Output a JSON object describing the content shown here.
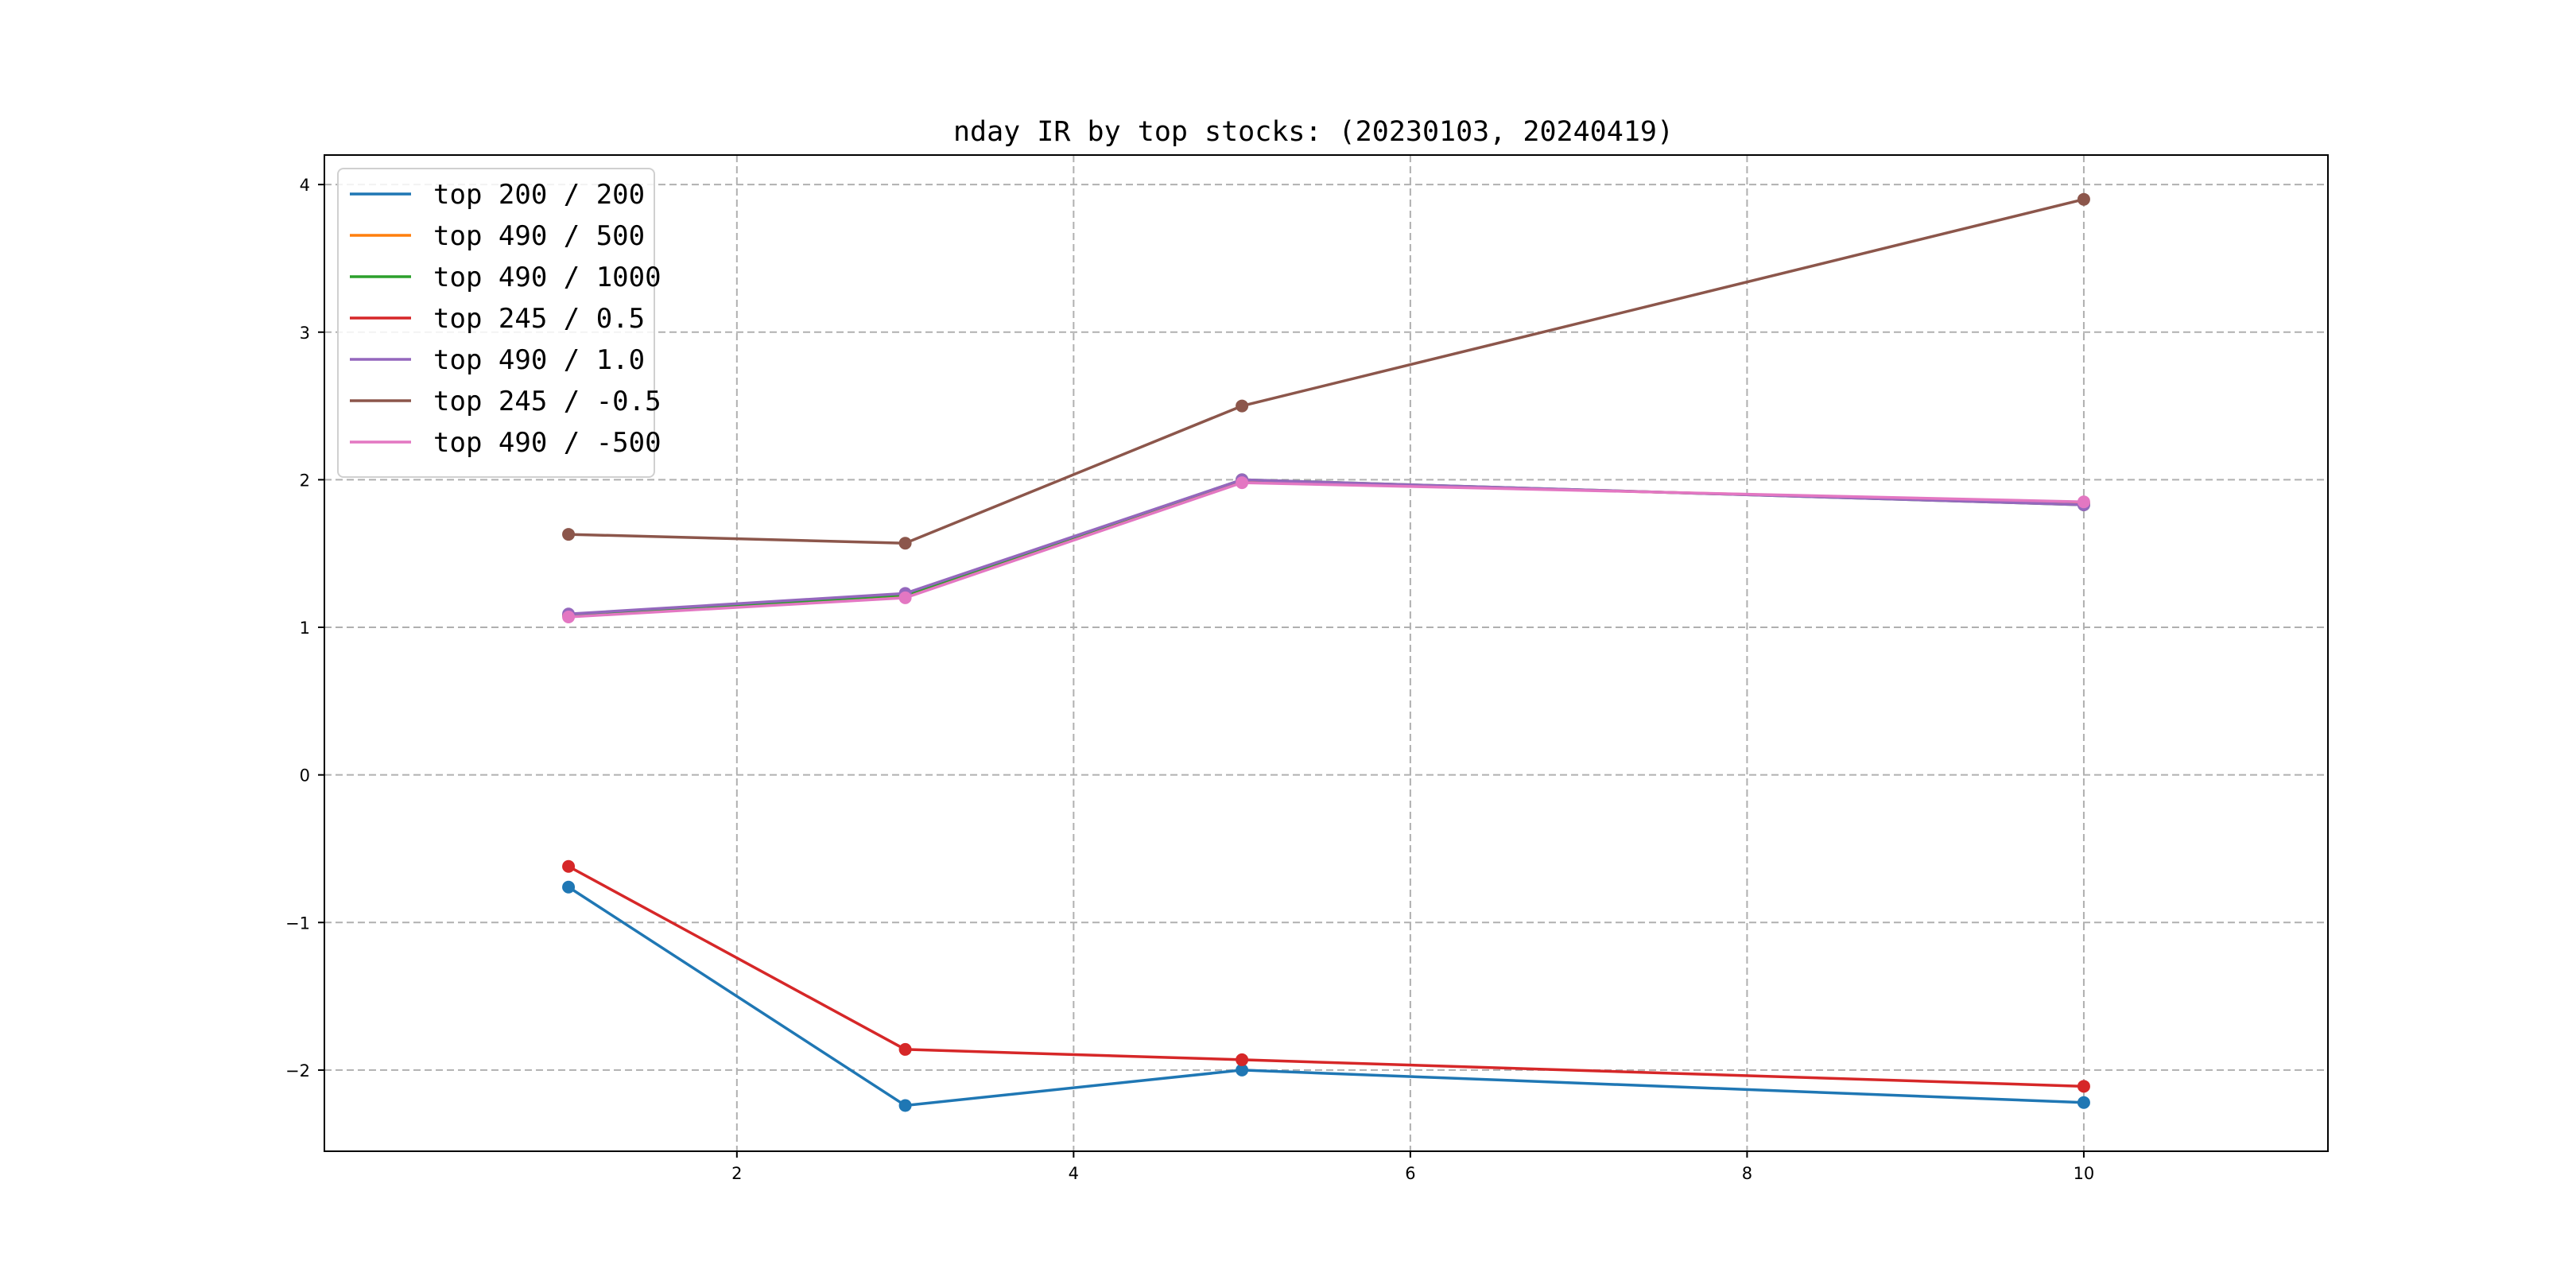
{
  "chart_data": {
    "type": "line",
    "title": "nday IR by top stocks: (20230103, 20240419)",
    "xlabel": "",
    "ylabel": "",
    "x": [
      1,
      3,
      5,
      10
    ],
    "xlim": [
      -0.45,
      11.45
    ],
    "ylim": [
      -2.55,
      4.2
    ],
    "xticks": [
      2,
      4,
      6,
      8,
      10
    ],
    "yticks": [
      -2,
      -1,
      0,
      1,
      2,
      3,
      4
    ],
    "grid": true,
    "legend_position": "top-left",
    "series": [
      {
        "name": "top 200 / 200",
        "color": "#1f77b4",
        "values": [
          -0.76,
          -2.24,
          -2.0,
          -2.22
        ]
      },
      {
        "name": "top 490 / 500",
        "color": "#ff7f0e",
        "values": [
          1.08,
          1.21,
          1.99,
          1.84
        ]
      },
      {
        "name": "top 490 / 1000",
        "color": "#2ca02c",
        "values": [
          1.08,
          1.22,
          2.0,
          1.83
        ]
      },
      {
        "name": "top 245 / 0.5",
        "color": "#d62728",
        "values": [
          -0.62,
          -1.86,
          -1.93,
          -2.11
        ]
      },
      {
        "name": "top 490 / 1.0",
        "color": "#9467bd",
        "values": [
          1.09,
          1.23,
          2.0,
          1.83
        ]
      },
      {
        "name": "top 245 / -0.5",
        "color": "#8c564b",
        "values": [
          1.63,
          1.57,
          2.5,
          3.9
        ]
      },
      {
        "name": "top 490 / -500",
        "color": "#e377c2",
        "values": [
          1.07,
          1.2,
          1.98,
          1.85
        ]
      }
    ]
  }
}
